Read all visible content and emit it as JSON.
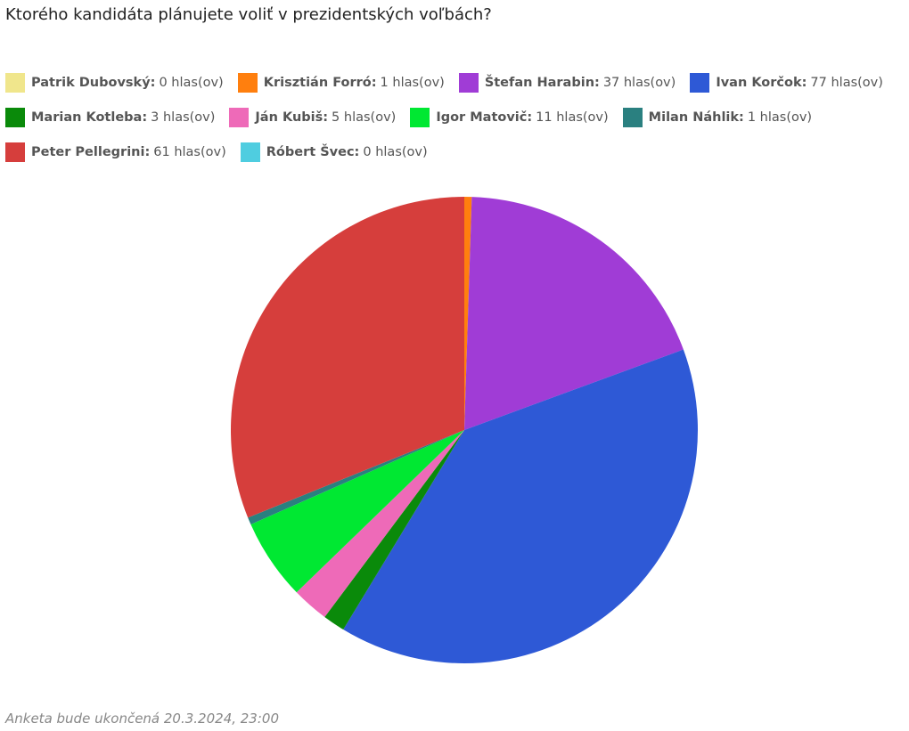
{
  "chart_data": {
    "type": "pie",
    "title": "Ktorého kandidáta plánujete voliť v prezidentských voľbách?",
    "categories": [
      "Patrik Dubovský:",
      "Krisztián Forró:",
      "Štefan Harabin:",
      "Ivan Korčok:",
      "Marian Kotleba:",
      "Ján Kubiš:",
      "Igor Matovič:",
      "Milan Náhlik:",
      "Peter Pellegrini:",
      "Róbert Švec:"
    ],
    "values": [
      0,
      1,
      37,
      77,
      3,
      5,
      11,
      1,
      61,
      0
    ],
    "value_labels": [
      "0 hlas(ov)",
      "1 hlas(ov)",
      "37 hlas(ov)",
      "77 hlas(ov)",
      "3 hlas(ov)",
      "5 hlas(ov)",
      "11 hlas(ov)",
      "1 hlas(ov)",
      "61 hlas(ov)",
      "0 hlas(ov)"
    ],
    "colors": [
      "#f0e68c",
      "#ff7f0e",
      "#a03cd6",
      "#2e59d6",
      "#0a8a0a",
      "#ee6ab8",
      "#00e832",
      "#2a8080",
      "#d63e3c",
      "#4fcde0"
    ],
    "note": "Anketa bude ukončená 20.3.2024, 23:00"
  }
}
